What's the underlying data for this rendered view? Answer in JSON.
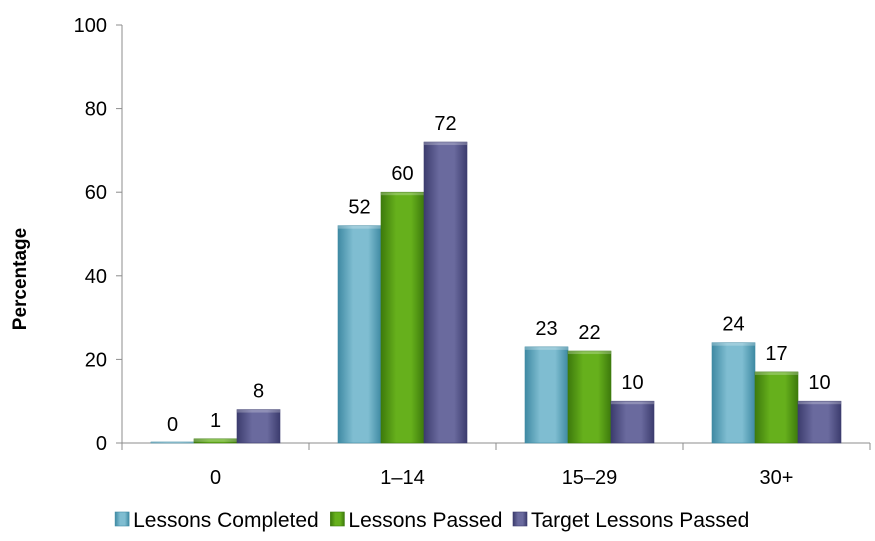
{
  "chart_data": {
    "type": "bar",
    "title": "",
    "xlabel": "",
    "ylabel": "Percentage",
    "ylim": [
      0,
      100
    ],
    "yticks": [
      0,
      20,
      40,
      60,
      80,
      100
    ],
    "grid": false,
    "legend_position": "bottom",
    "categories": [
      "0",
      "1–14",
      "15–29",
      "30+"
    ],
    "series": [
      {
        "name": "Lessons Completed",
        "values": [
          0,
          52,
          23,
          24
        ],
        "color": "#7fbdd1",
        "color_dark": "#3f8aa3"
      },
      {
        "name": "Lessons Passed",
        "values": [
          1,
          60,
          22,
          17
        ],
        "color": "#66b01c",
        "color_dark": "#3d7a0c"
      },
      {
        "name": "Target Lessons Passed",
        "values": [
          8,
          72,
          10,
          10
        ],
        "color": "#6a6a9e",
        "color_dark": "#3c3c6e"
      }
    ],
    "data_labels": [
      [
        "0",
        "52",
        "23",
        "24"
      ],
      [
        "1",
        "60",
        "22",
        "17"
      ],
      [
        "8",
        "72",
        "10",
        "10"
      ]
    ]
  }
}
